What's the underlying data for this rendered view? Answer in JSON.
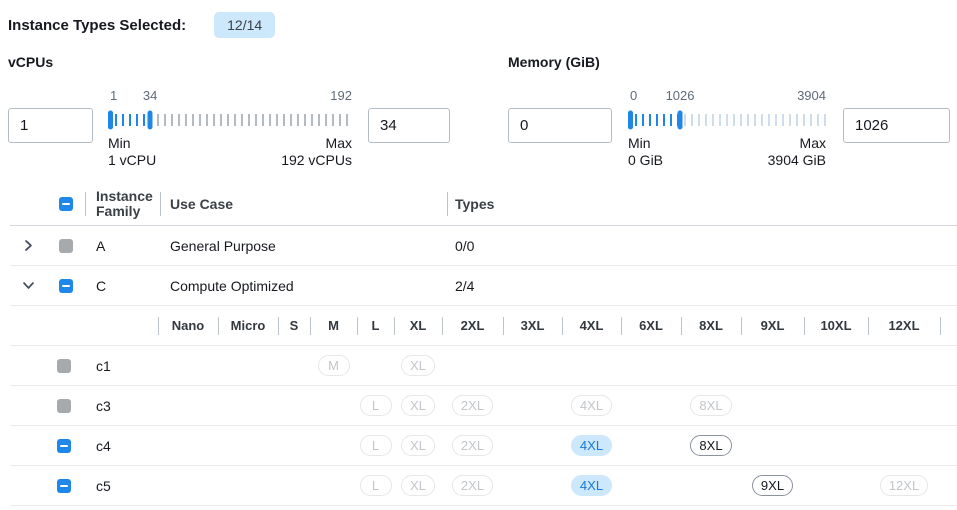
{
  "header": {
    "label": "Instance Types Selected:",
    "badge": "12/14"
  },
  "filters": [
    {
      "label": "vCPUs",
      "min_input": "1",
      "max_input": "34",
      "slider": {
        "min": 1,
        "max": 192,
        "lower": 1,
        "upper": 34,
        "lower_label": "1",
        "upper_label": "34",
        "max_label": "192"
      },
      "captions": {
        "min_title": "Min",
        "min_value": "1 vCPU",
        "max_title": "Max",
        "max_value": "192 vCPUs"
      }
    },
    {
      "label": "Memory (GiB)",
      "min_input": "0",
      "max_input": "1026",
      "slider": {
        "min": 0,
        "max": 3904,
        "lower": 0,
        "upper": 1026,
        "lower_label": "0",
        "upper_label": "1026",
        "max_label": "3904"
      },
      "captions": {
        "min_title": "Min",
        "min_value": "0 GiB",
        "max_title": "Max",
        "max_value": "3904 GiB"
      }
    }
  ],
  "table": {
    "columns": {
      "family": "Instance Family",
      "use_case": "Use Case",
      "types": "Types"
    },
    "select_all_checkbox": "indeterminate",
    "size_columns": [
      "Nano",
      "Micro",
      "S",
      "M",
      "L",
      "XL",
      "2XL",
      "3XL",
      "4XL",
      "6XL",
      "8XL",
      "9XL",
      "10XL",
      "12XL"
    ],
    "families": [
      {
        "name": "A",
        "use_case": "General Purpose",
        "types": "0/0",
        "expanded": false,
        "checkbox": "disabled"
      },
      {
        "name": "C",
        "use_case": "Compute Optimized",
        "types": "2/4",
        "expanded": true,
        "checkbox": "indeterminate"
      }
    ],
    "instance_rows": [
      {
        "name": "c1",
        "checkbox": "disabled",
        "pills": [
          {
            "size": "M",
            "state": "disabled"
          },
          {
            "size": "XL",
            "state": "disabled"
          }
        ]
      },
      {
        "name": "c3",
        "checkbox": "disabled",
        "pills": [
          {
            "size": "L",
            "state": "disabled"
          },
          {
            "size": "XL",
            "state": "disabled"
          },
          {
            "size": "2XL",
            "state": "disabled"
          },
          {
            "size": "4XL",
            "state": "disabled"
          },
          {
            "size": "8XL",
            "state": "disabled"
          }
        ]
      },
      {
        "name": "c4",
        "checkbox": "indeterminate",
        "pills": [
          {
            "size": "L",
            "state": "disabled"
          },
          {
            "size": "XL",
            "state": "disabled"
          },
          {
            "size": "2XL",
            "state": "disabled"
          },
          {
            "size": "4XL",
            "state": "selected"
          },
          {
            "size": "8XL",
            "state": "enabled"
          }
        ]
      },
      {
        "name": "c5",
        "checkbox": "indeterminate",
        "pills": [
          {
            "size": "L",
            "state": "disabled"
          },
          {
            "size": "XL",
            "state": "disabled"
          },
          {
            "size": "2XL",
            "state": "disabled"
          },
          {
            "size": "4XL",
            "state": "selected"
          },
          {
            "size": "9XL",
            "state": "enabled"
          },
          {
            "size": "12XL",
            "state": "disabled"
          }
        ]
      }
    ]
  },
  "icons": {
    "expand_collapsed": "chevron-right-icon",
    "expand_expanded": "chevron-down-icon",
    "indeterminate_checkbox": "minus-checkbox-icon"
  },
  "colors": {
    "accent_blue": "#1e87e8",
    "selected_pill_bg": "#cde7fb",
    "selected_pill_text": "#1878d8",
    "badge_bg": "#cde7fb",
    "disabled_gray": "#a7aaad",
    "tick_gray": "#b4bac2",
    "tick_light": "#cfdcec",
    "row_border": "#e7e9ec"
  }
}
